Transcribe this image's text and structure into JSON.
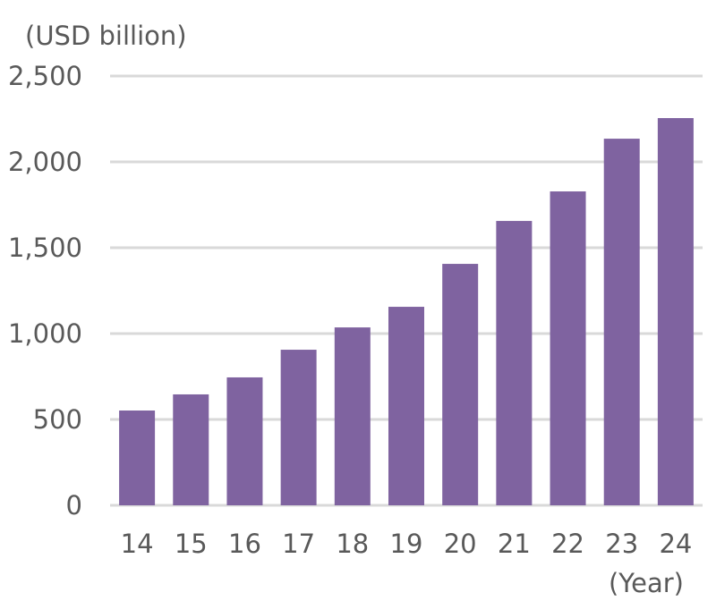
{
  "chart_data": {
    "type": "bar",
    "title": "",
    "ylabel": "(USD billion)",
    "xlabel": "(Year)",
    "categories": [
      "14",
      "15",
      "16",
      "17",
      "18",
      "19",
      "20",
      "21",
      "22",
      "23",
      "24"
    ],
    "values": [
      552,
      646,
      745,
      906,
      1036,
      1156,
      1406,
      1656,
      1828,
      2135,
      2255
    ],
    "ylim": [
      0,
      2500
    ],
    "yticks": [
      0,
      500,
      1000,
      1500,
      2000,
      2500
    ],
    "ytick_labels": [
      "0",
      "500",
      "1,000",
      "1,500",
      "2,000",
      "2,500"
    ],
    "grid": true,
    "bar_color": "#7f63a0",
    "grid_color": "#d9d9d9"
  }
}
